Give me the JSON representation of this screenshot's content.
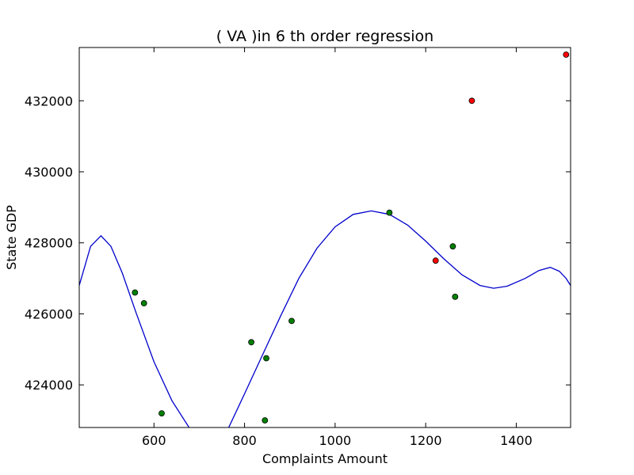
{
  "chart_data": {
    "type": "scatter",
    "title": "(  VA  )in 6 th order regression",
    "xlabel": "Complaints Amount",
    "ylabel": "State GDP",
    "xlim": [
      435,
      1520
    ],
    "ylim": [
      422800,
      433500
    ],
    "xticks": [
      600,
      800,
      1000,
      1200,
      1400
    ],
    "yticks": [
      424000,
      426000,
      428000,
      430000,
      432000
    ],
    "grid": false,
    "series": [
      {
        "kind": "points",
        "color": "#008000",
        "points": [
          [
            558,
            426600
          ],
          [
            578,
            426300
          ],
          [
            617,
            423200
          ],
          [
            815,
            425200
          ],
          [
            845,
            423000
          ],
          [
            848,
            424750
          ],
          [
            904,
            425800
          ],
          [
            1120,
            428850
          ],
          [
            1260,
            427900
          ],
          [
            1265,
            426480
          ]
        ]
      },
      {
        "kind": "points",
        "color": "#ff0000",
        "points": [
          [
            1222,
            427500
          ],
          [
            1302,
            432000
          ],
          [
            1510,
            433300
          ]
        ]
      },
      {
        "kind": "line",
        "color": "#0000cc",
        "points": [
          [
            435,
            426800
          ],
          [
            460,
            427900
          ],
          [
            483,
            428200
          ],
          [
            505,
            427900
          ],
          [
            530,
            427150
          ],
          [
            560,
            426050
          ],
          [
            600,
            424650
          ],
          [
            640,
            423550
          ],
          [
            680,
            422750
          ],
          [
            765,
            422800
          ],
          [
            800,
            423750
          ],
          [
            840,
            424850
          ],
          [
            880,
            425950
          ],
          [
            920,
            427000
          ],
          [
            960,
            427850
          ],
          [
            1000,
            428450
          ],
          [
            1040,
            428800
          ],
          [
            1080,
            428900
          ],
          [
            1120,
            428800
          ],
          [
            1160,
            428500
          ],
          [
            1200,
            428050
          ],
          [
            1240,
            427550
          ],
          [
            1280,
            427100
          ],
          [
            1320,
            426800
          ],
          [
            1350,
            426720
          ],
          [
            1380,
            426780
          ],
          [
            1420,
            427000
          ],
          [
            1450,
            427220
          ],
          [
            1475,
            427310
          ],
          [
            1495,
            427200
          ],
          [
            1510,
            427000
          ],
          [
            1520,
            426800
          ]
        ]
      }
    ]
  }
}
